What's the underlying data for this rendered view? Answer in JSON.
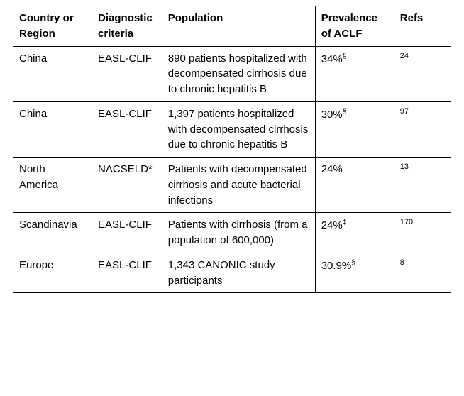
{
  "table": {
    "columns": [
      "Country or Region",
      "Diagnostic criteria",
      "Population",
      "Prevalence of ACLF",
      "Refs"
    ],
    "rows": [
      {
        "country": "China",
        "criteria": "EASL-CLIF",
        "population": "890 patients hospitalized with decompensated cirrhosis due to chronic hepatitis B",
        "prevalence": "34%",
        "prev_sup": "§",
        "refs": "24"
      },
      {
        "country": "China",
        "criteria": "EASL-CLIF",
        "population": "1,397 patients hospitalized with decompensated cirrhosis due to chronic hepatitis B",
        "prevalence": "30%",
        "prev_sup": "§",
        "refs": "97"
      },
      {
        "country": "North America",
        "criteria": "NACSELD*",
        "population": "Patients with decompensated cirrhosis and acute bacterial infections",
        "prevalence": "24%",
        "prev_sup": "",
        "refs": "13"
      },
      {
        "country": "Scandinavia",
        "criteria": "EASL-CLIF",
        "population": "Patients with cirrhosis (from a population of 600,000)",
        "prevalence": "24%",
        "prev_sup": "‡",
        "refs": "170"
      },
      {
        "country": "Europe",
        "criteria": "EASL-CLIF",
        "population": "1,343 CANONIC study participants",
        "prevalence": "30.9%",
        "prev_sup": "§",
        "refs": "8"
      }
    ],
    "styling": {
      "border_color": "#000000",
      "background_color": "#ffffff",
      "font_family": "Arial",
      "header_fontsize": 15,
      "cell_fontsize": 15,
      "refs_fontsize": 11,
      "col_widths_percent": [
        18,
        16,
        35,
        18,
        13
      ]
    }
  }
}
